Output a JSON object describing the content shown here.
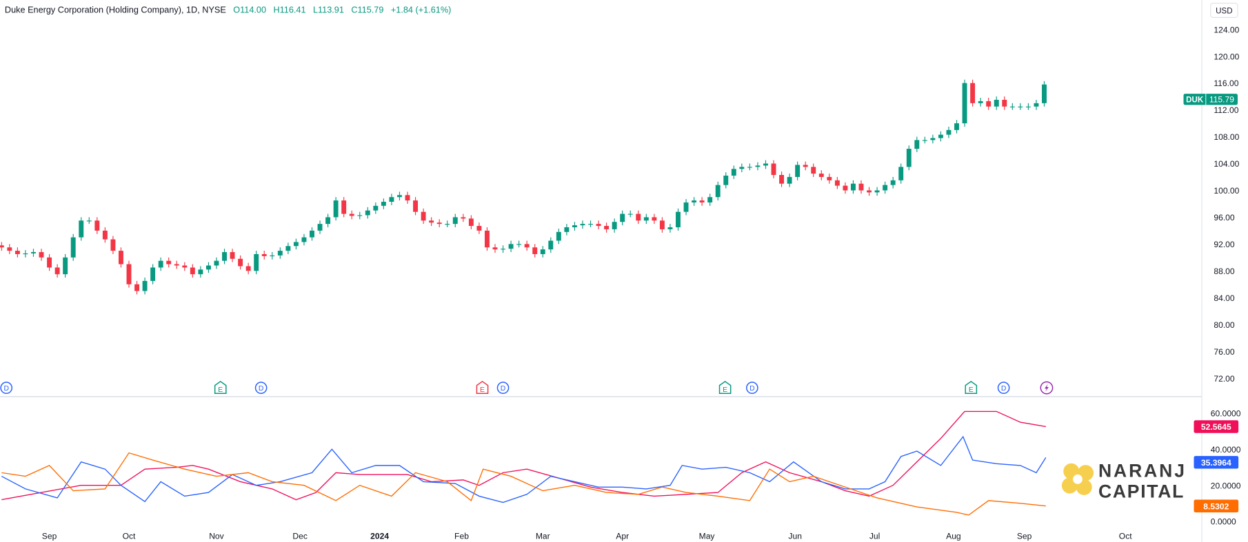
{
  "header": {
    "title": "Duke Energy Corporation (Holding Company), 1D, NYSE",
    "open": "O114.00",
    "high": "H116.41",
    "low": "L113.91",
    "close": "C115.79",
    "change": "+1.84 (+1.61%)"
  },
  "currency": "USD",
  "price_tag": {
    "symbol": "DUK",
    "value": "115.79"
  },
  "colors": {
    "up": "#089981",
    "down": "#f23645",
    "adx": "#f0105a",
    "plus_di": "#2962ff",
    "minus_di": "#ff6d00",
    "events_dividend": "#2962ff",
    "events_earnings": "#089981",
    "events_earnings_miss": "#f23645",
    "split": "#9c27b0"
  },
  "logo": {
    "line1": "NARANJ",
    "line2": "CAPITAL"
  },
  "chart_data": [
    {
      "type": "candlestick",
      "yaxis_ticks": [
        "124.00",
        "120.00",
        "116.00",
        "112.00",
        "108.00",
        "104.00",
        "100.00",
        "96.00",
        "92.00",
        "88.00",
        "84.00",
        "80.00",
        "76.00",
        "72.00"
      ],
      "ylim": [
        70.5,
        126
      ],
      "xaxis_ticks": [
        {
          "label": "Sep",
          "bar": 6
        },
        {
          "label": "Oct",
          "bar": 16
        },
        {
          "label": "Nov",
          "bar": 27
        },
        {
          "label": "Dec",
          "bar": 37.5
        },
        {
          "label": "2024",
          "bar": 47.5
        },
        {
          "label": "Feb",
          "bar": 57.8
        },
        {
          "label": "Mar",
          "bar": 68
        },
        {
          "label": "Apr",
          "bar": 78
        },
        {
          "label": "May",
          "bar": 88.6
        },
        {
          "label": "Jun",
          "bar": 99.7
        },
        {
          "label": "Jul",
          "bar": 109.7
        },
        {
          "label": "Aug",
          "bar": 119.6
        },
        {
          "label": "Sep",
          "bar": 128.5
        },
        {
          "label": "Oct",
          "bar": 141.2
        }
      ],
      "closes": [
        91.5,
        91,
        90.5,
        90.6,
        90.8,
        90,
        88.5,
        87.5,
        90,
        93,
        95.5,
        95.5,
        94,
        92.7,
        91,
        89,
        86,
        85,
        86.5,
        88.5,
        89.5,
        89,
        88.8,
        88.5,
        87.5,
        88.2,
        88.8,
        89.5,
        90.8,
        89.8,
        88.7,
        88,
        90.5,
        90.2,
        90.3,
        91,
        91.7,
        92.3,
        93,
        94,
        95,
        96,
        98.5,
        96.5,
        96.2,
        96.3,
        97,
        97.7,
        98.3,
        99,
        99.3,
        98.5,
        96.8,
        95.5,
        95.2,
        95,
        95,
        96,
        95.8,
        94.7,
        94,
        91.5,
        91.2,
        91.3,
        92,
        92,
        91.5,
        90.5,
        91.2,
        92.5,
        93.8,
        94.5,
        94.8,
        95,
        95,
        94.7,
        94.2,
        95.3,
        96.5,
        96.5,
        95.5,
        96,
        95.5,
        94.2,
        94.5,
        96.8,
        98.2,
        98.5,
        98.2,
        99,
        100.8,
        102.2,
        103.2,
        103.5,
        103.5,
        103.7,
        104,
        102.3,
        101,
        102,
        103.8,
        103.5,
        102.5,
        102,
        101.5,
        100.7,
        100,
        101,
        100,
        99.7,
        100,
        100.8,
        101.5,
        103.5,
        106.2,
        107.5,
        107.5,
        107.8,
        108.3,
        109,
        110,
        116,
        113,
        113.3,
        112.5,
        113.5,
        112.5,
        112.5,
        112.5,
        112.5,
        113,
        115.79
      ],
      "events": [
        {
          "type": "D",
          "bar": 0.6
        },
        {
          "type": "E",
          "bar": 27.5
        },
        {
          "type": "D",
          "bar": 32.6
        },
        {
          "type": "E-miss",
          "bar": 60.4
        },
        {
          "type": "D",
          "bar": 63
        },
        {
          "type": "E",
          "bar": 90.9
        },
        {
          "type": "D",
          "bar": 94.3
        },
        {
          "type": "E",
          "bar": 121.8
        },
        {
          "type": "D",
          "bar": 125.9
        },
        {
          "type": "split",
          "bar": 131.3
        }
      ]
    },
    {
      "type": "line",
      "yaxis_ticks": [
        "60.0000",
        "40.0000",
        "20.0000",
        "0.0000"
      ],
      "ylim": [
        -2,
        66
      ],
      "series": [
        {
          "key": "adx",
          "last": "52.5645",
          "points": [
            [
              0,
              12
            ],
            [
              5,
              16
            ],
            [
              10,
              20
            ],
            [
              15,
              20
            ],
            [
              18,
              29
            ],
            [
              22,
              30
            ],
            [
              24,
              31
            ],
            [
              26,
              29
            ],
            [
              30,
              22
            ],
            [
              34,
              18
            ],
            [
              37,
              12
            ],
            [
              39.5,
              16
            ],
            [
              42,
              27
            ],
            [
              45,
              26
            ],
            [
              48,
              26
            ],
            [
              51,
              26
            ],
            [
              54,
              22
            ],
            [
              58,
              23
            ],
            [
              60,
              20
            ],
            [
              63,
              27
            ],
            [
              66,
              29
            ],
            [
              70,
              24
            ],
            [
              74,
              19
            ],
            [
              78,
              16
            ],
            [
              82,
              14
            ],
            [
              86,
              15
            ],
            [
              90,
              16
            ],
            [
              93,
              27
            ],
            [
              96,
              33
            ],
            [
              99,
              27
            ],
            [
              103,
              22
            ],
            [
              106,
              17
            ],
            [
              109,
              14
            ],
            [
              112,
              20
            ],
            [
              115,
              33
            ],
            [
              118,
              46
            ],
            [
              121,
              61
            ],
            [
              125,
              61
            ],
            [
              128,
              55
            ],
            [
              131.2,
              52.56
            ]
          ]
        },
        {
          "key": "plus_di",
          "last": "35.3964",
          "points": [
            [
              0,
              25
            ],
            [
              3,
              18
            ],
            [
              7,
              13
            ],
            [
              10,
              33
            ],
            [
              13,
              29
            ],
            [
              15,
              20
            ],
            [
              18,
              11
            ],
            [
              20,
              22
            ],
            [
              23,
              14
            ],
            [
              26,
              16
            ],
            [
              29,
              26
            ],
            [
              32,
              20
            ],
            [
              35,
              22
            ],
            [
              39,
              27
            ],
            [
              41.5,
              40
            ],
            [
              44,
              27
            ],
            [
              47,
              31
            ],
            [
              50,
              31
            ],
            [
              53,
              22
            ],
            [
              57,
              21
            ],
            [
              60,
              14
            ],
            [
              63,
              10.5
            ],
            [
              66,
              15
            ],
            [
              69,
              25
            ],
            [
              72,
              22
            ],
            [
              75,
              19
            ],
            [
              78,
              19
            ],
            [
              81,
              18
            ],
            [
              84,
              20
            ],
            [
              85.5,
              31
            ],
            [
              88,
              29
            ],
            [
              91,
              30
            ],
            [
              94,
              27
            ],
            [
              96.5,
              22
            ],
            [
              99.5,
              33
            ],
            [
              103,
              22
            ],
            [
              106,
              18
            ],
            [
              109,
              18
            ],
            [
              111,
              22
            ],
            [
              113,
              36
            ],
            [
              115,
              39
            ],
            [
              118,
              31
            ],
            [
              120.8,
              47
            ],
            [
              122,
              34
            ],
            [
              125,
              32
            ],
            [
              128,
              31
            ],
            [
              130,
              27
            ],
            [
              131.2,
              35.4
            ]
          ]
        },
        {
          "key": "minus_di",
          "last": "8.5302",
          "points": [
            [
              0,
              27
            ],
            [
              3,
              25
            ],
            [
              6,
              31
            ],
            [
              9,
              17
            ],
            [
              13,
              18
            ],
            [
              16,
              38
            ],
            [
              19,
              34
            ],
            [
              23,
              29
            ],
            [
              27,
              25
            ],
            [
              31,
              27
            ],
            [
              34,
              22
            ],
            [
              38,
              20
            ],
            [
              42,
              11.5
            ],
            [
              45,
              20
            ],
            [
              49,
              14
            ],
            [
              52,
              27
            ],
            [
              56,
              22
            ],
            [
              59,
              11.5
            ],
            [
              60.5,
              29
            ],
            [
              64,
              25
            ],
            [
              68,
              17
            ],
            [
              72,
              20
            ],
            [
              76,
              16
            ],
            [
              80,
              15
            ],
            [
              83,
              19
            ],
            [
              86,
              16
            ],
            [
              90,
              14
            ],
            [
              94,
              11.5
            ],
            [
              96.5,
              29
            ],
            [
              99,
              22
            ],
            [
              102,
              25
            ],
            [
              106,
              19
            ],
            [
              110,
              13
            ],
            [
              115,
              8
            ],
            [
              120,
              5
            ],
            [
              121.5,
              3.5
            ],
            [
              124,
              11.5
            ],
            [
              128,
              10
            ],
            [
              131.2,
              8.5
            ]
          ]
        }
      ]
    }
  ]
}
